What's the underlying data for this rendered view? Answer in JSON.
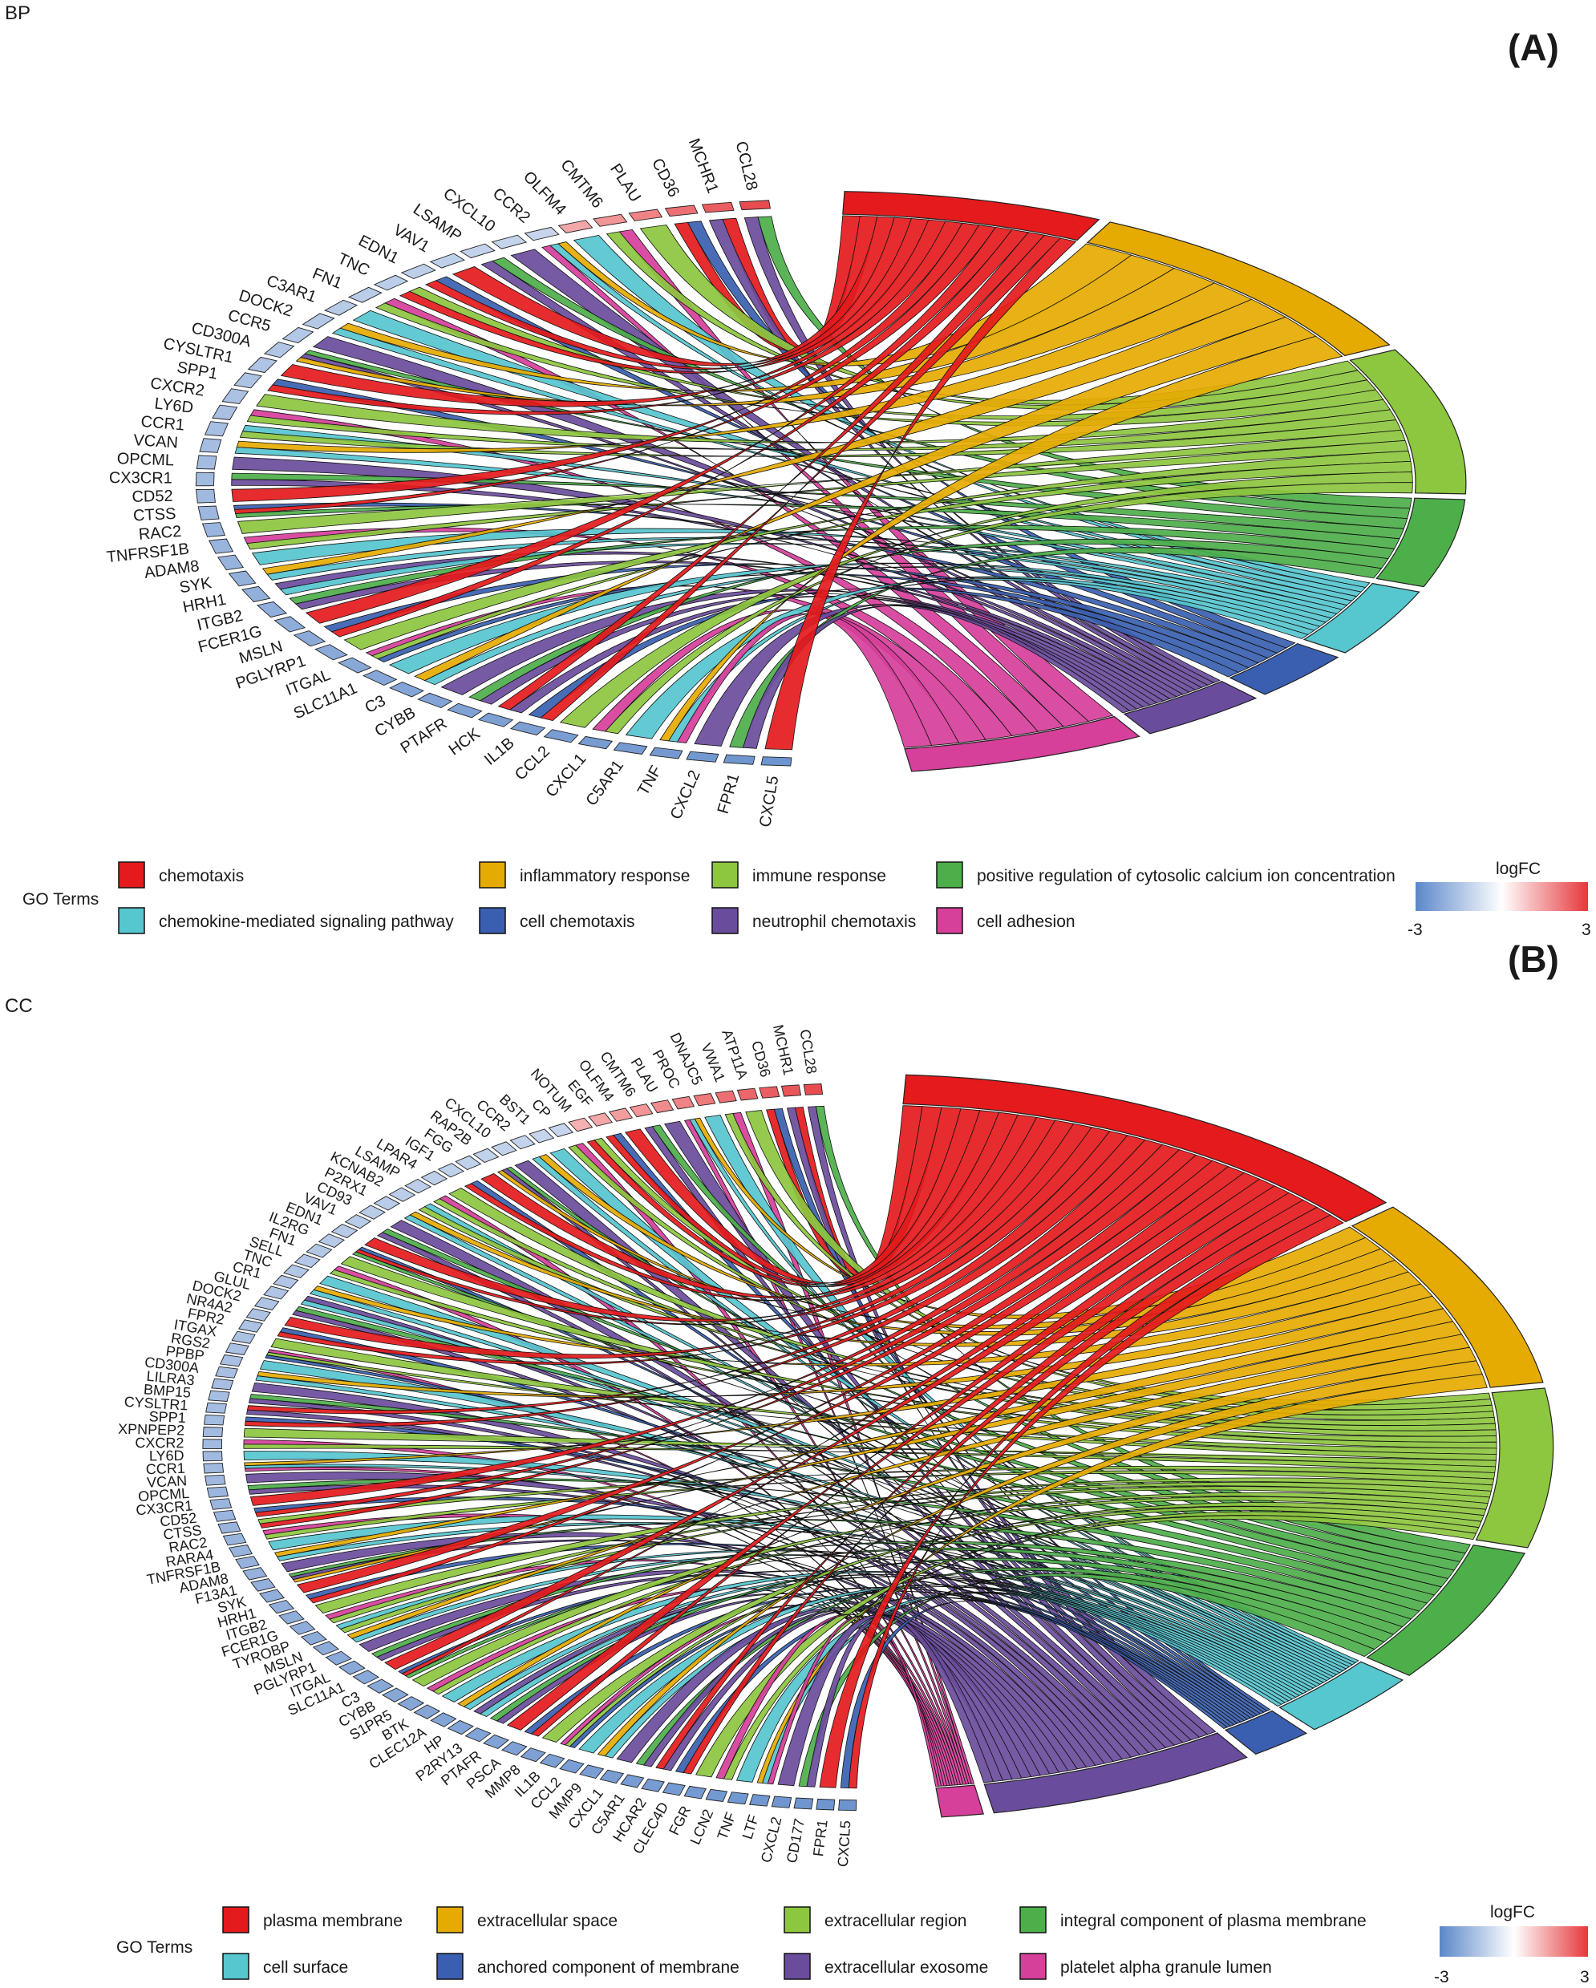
{
  "chart_data": [
    {
      "type": "chord",
      "panel_tag": "BP",
      "panel_letter": "(A)",
      "legend_title": "GO Terms",
      "terms": [
        {
          "name": "chemotaxis",
          "color": "#e41a1c"
        },
        {
          "name": "inflammatory response",
          "color": "#e6ab02"
        },
        {
          "name": "immune response",
          "color": "#8dc63f"
        },
        {
          "name": "positive regulation of cytosolic calcium ion concentration",
          "color": "#4daf4a"
        },
        {
          "name": "chemokine-mediated signaling pathway",
          "color": "#56c6cf"
        },
        {
          "name": "cell chemotaxis",
          "color": "#3a5fb0"
        },
        {
          "name": "neutrophil chemotaxis",
          "color": "#6a4c9c"
        },
        {
          "name": "cell adhesion",
          "color": "#d63f9a"
        }
      ],
      "term_block_weights": [
        12,
        18,
        15,
        9,
        7,
        5,
        6,
        11
      ],
      "genes_top": [
        "CCL28",
        "MCHR1",
        "CD36",
        "PLAU",
        "CMTM6",
        "OLFM4",
        "CCR2",
        "CXCL10",
        "LSAMP",
        "VAV1",
        "EDN1",
        "TNC",
        "FN1",
        "C3AR1",
        "DOCK2",
        "CCR5",
        "CD300A",
        "CYSLTR1",
        "SPP1",
        "CXCR2",
        "LY6D",
        "CCR1",
        "VCAN",
        "OPCML",
        "CX3CR1",
        "CD52",
        "CTSS",
        "RAC2",
        "TNFRSF1B",
        "ADAM8",
        "SYK",
        "HRH1",
        "ITGB2",
        "FCER1G",
        "MSLN",
        "PGLYRP1",
        "ITGAL",
        "SLC11A1",
        "C3",
        "CYBB",
        "PTAFR",
        "HCK",
        "IL1B",
        "CCL2",
        "CXCL1",
        "C5AR1",
        "TNF",
        "CXCL2",
        "FPR1",
        "CXCL5"
      ],
      "upregulated_count": 6,
      "logfc_legend": {
        "title": "logFC",
        "min_label": "-3",
        "max_label": "3",
        "low_color": "#5b87c9",
        "mid_color": "#ffffff",
        "high_color": "#e5383b"
      }
    },
    {
      "type": "chord",
      "panel_tag": "CC",
      "panel_letter": "(B)",
      "legend_title": "GO Terms",
      "terms": [
        {
          "name": "plasma membrane",
          "color": "#e41a1c"
        },
        {
          "name": "extracellular space",
          "color": "#e6ab02"
        },
        {
          "name": "extracellular region",
          "color": "#8dc63f"
        },
        {
          "name": "integral component of plasma membrane",
          "color": "#4daf4a"
        },
        {
          "name": "cell surface",
          "color": "#56c6cf"
        },
        {
          "name": "anchored component of membrane",
          "color": "#3a5fb0"
        },
        {
          "name": "extracellular exosome",
          "color": "#6a4c9c"
        },
        {
          "name": "platelet alpha granule lumen",
          "color": "#d63f9a"
        }
      ],
      "term_block_weights": [
        26,
        17,
        14,
        12,
        6,
        3,
        13,
        2
      ],
      "genes_top": [
        "CCL28",
        "MCHR1",
        "CD36",
        "ATP11A",
        "VWA1",
        "DNAJC5",
        "PROC",
        "PLAU",
        "CMTM6",
        "OLFM4",
        "EGF",
        "NOTUM",
        "CP",
        "BST1",
        "CCR2",
        "CXCL10",
        "RAP2B",
        "FGG",
        "IGF1",
        "LPAR4",
        "LSAMP",
        "KCNAB2",
        "P2RX1",
        "CD93",
        "VAV1",
        "EDN1",
        "IL2RG",
        "FN1",
        "SELL",
        "TNC",
        "CR1",
        "GLUL",
        "DOCK2",
        "NR4A2",
        "FPR2",
        "ITGAX",
        "RGS2",
        "PPBP",
        "CD300A",
        "LILRA3",
        "BMP15",
        "CYSLTR1",
        "SPP1",
        "XPNPEP2",
        "CXCR2",
        "LY6D",
        "CCR1",
        "VCAN",
        "OPCML",
        "CX3CR1",
        "CD52",
        "CTSS",
        "RAC2",
        "RARA4",
        "TNFRSF1B",
        "ADAM8",
        "F13A1",
        "SYK",
        "HRH1",
        "ITGB2",
        "FCER1G",
        "TYROBP",
        "MSLN",
        "PGLYRP1",
        "ITGAL",
        "SLC11A1",
        "C3",
        "CYBB",
        "S1PR5",
        "BTK",
        "CLEC12A",
        "HP",
        "P2RY13",
        "PTAFR",
        "PSCA",
        "MMP8",
        "IL1B",
        "CCL2",
        "MMP9",
        "CXCL1",
        "C5AR1",
        "HCAR2",
        "CLEC4D",
        "FGR",
        "LCN2",
        "TNF",
        "LTF",
        "CXCL2",
        "CD177",
        "FPR1",
        "CXCL5"
      ],
      "upregulated_count": 12,
      "logfc_legend": {
        "title": "logFC",
        "min_label": "-3",
        "max_label": "3",
        "low_color": "#5b87c9",
        "mid_color": "#ffffff",
        "high_color": "#e5383b"
      }
    }
  ]
}
